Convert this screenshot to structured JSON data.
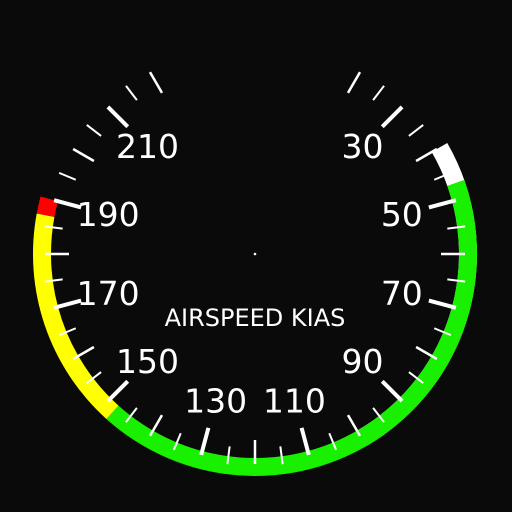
{
  "instrument": {
    "title": "AIRSPEED KIAS",
    "units": "KIAS",
    "scale_labels": [
      {
        "value": 30,
        "text": "30"
      },
      {
        "value": 50,
        "text": "50"
      },
      {
        "value": 70,
        "text": "70"
      },
      {
        "value": 90,
        "text": "90"
      },
      {
        "value": 110,
        "text": "110"
      },
      {
        "value": 130,
        "text": "130"
      },
      {
        "value": 150,
        "text": "150"
      },
      {
        "value": 170,
        "text": "170"
      },
      {
        "value": 190,
        "text": "190"
      },
      {
        "value": 210,
        "text": "210"
      }
    ],
    "scale_min": 20,
    "scale_max": 220,
    "major_tick_every": 10,
    "minor_tick_every": 5,
    "arcs": [
      {
        "name": "white-arc",
        "from": 40,
        "to": 100,
        "color": "#ffffff"
      },
      {
        "name": "green-arc",
        "from": 47,
        "to": 148,
        "color": "#19f000"
      },
      {
        "name": "yellow-arc",
        "from": 148,
        "to": 187,
        "color": "#ffff00"
      },
      {
        "name": "red-line",
        "from": 187,
        "to": 190,
        "color": "#ff0000"
      }
    ],
    "colors": {
      "background": "#0a0a0a",
      "tick": "#ffffff",
      "label": "#ffffff"
    }
  }
}
